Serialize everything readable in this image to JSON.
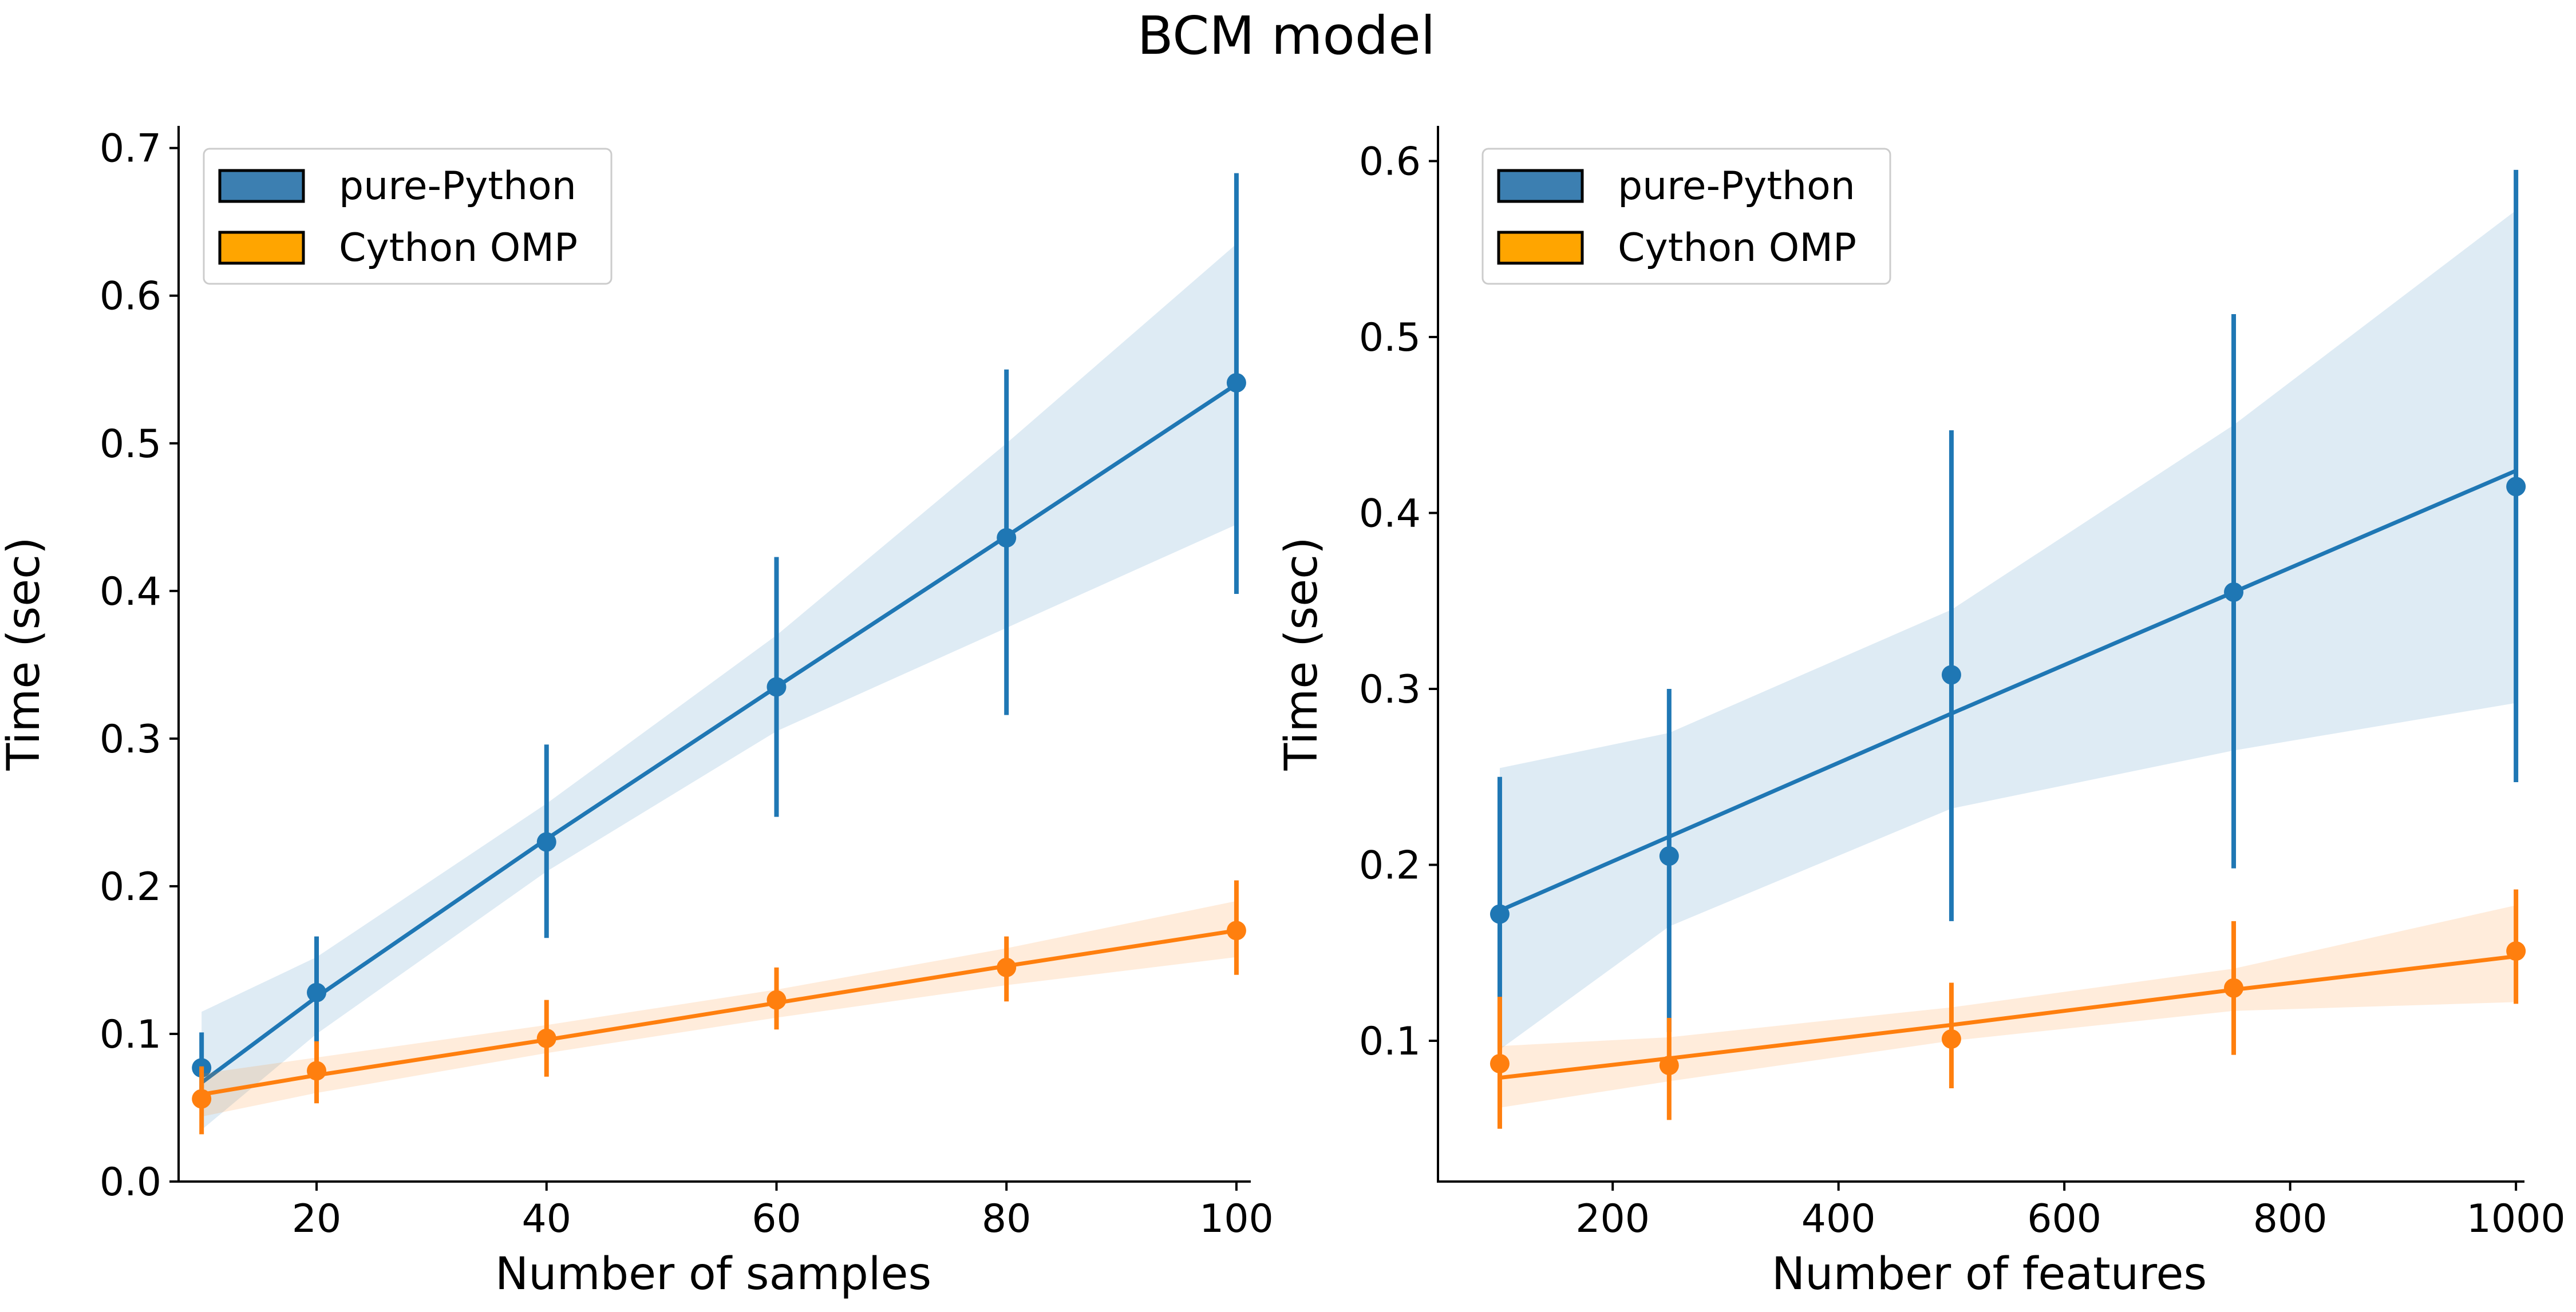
{
  "figure_title": "BCM model",
  "chart_data": [
    {
      "type": "line",
      "title": "",
      "xlabel": "Number of samples",
      "ylabel": "Time (sec)",
      "xlim": [
        8,
        101
      ],
      "ylim": [
        0,
        0.715
      ],
      "xticks": [
        20,
        40,
        60,
        80,
        100
      ],
      "yticks": [
        0.0,
        0.1,
        0.2,
        0.3,
        0.4,
        0.5,
        0.6,
        0.7
      ],
      "xtick_labels": [
        "20",
        "40",
        "60",
        "80",
        "100"
      ],
      "ytick_labels": [
        "0.0",
        "0.1",
        "0.2",
        "0.3",
        "0.4",
        "0.5",
        "0.6",
        "0.7"
      ],
      "legend_position": "top-left",
      "x": [
        10,
        20,
        40,
        60,
        80,
        100
      ],
      "series": [
        {
          "name": "pure-Python",
          "color": "#1f77b4",
          "legend_color": "#3c7fb1",
          "values": [
            0.077,
            0.128,
            0.23,
            0.335,
            0.436,
            0.541
          ],
          "err_low": [
            0.05,
            0.09,
            0.165,
            0.247,
            0.316,
            0.398
          ],
          "err_high": [
            0.101,
            0.166,
            0.296,
            0.423,
            0.55,
            0.683
          ],
          "fit": [
            0.067,
            0.125,
            0.232,
            0.335,
            0.437,
            0.54
          ],
          "ci_low": [
            0.035,
            0.1,
            0.21,
            0.305,
            0.375,
            0.445
          ],
          "ci_high": [
            0.115,
            0.152,
            0.256,
            0.37,
            0.5,
            0.635
          ]
        },
        {
          "name": "Cython OMP",
          "color": "#ff7f0e",
          "legend_color": "#ffa500",
          "values": [
            0.056,
            0.075,
            0.097,
            0.123,
            0.145,
            0.17
          ],
          "err_low": [
            0.032,
            0.053,
            0.071,
            0.103,
            0.122,
            0.14
          ],
          "err_high": [
            0.078,
            0.095,
            0.123,
            0.145,
            0.166,
            0.204
          ],
          "fit": [
            0.059,
            0.072,
            0.096,
            0.121,
            0.146,
            0.17
          ],
          "ci_low": [
            0.044,
            0.06,
            0.087,
            0.111,
            0.133,
            0.152
          ],
          "ci_high": [
            0.073,
            0.084,
            0.106,
            0.13,
            0.158,
            0.19
          ]
        }
      ]
    },
    {
      "type": "line",
      "title": "",
      "xlabel": "Number of features",
      "ylabel": "Time (sec)",
      "xlim": [
        62,
        1005
      ],
      "ylim": [
        0.02,
        0.62
      ],
      "xticks": [
        200,
        400,
        600,
        800,
        1000
      ],
      "yticks": [
        0.1,
        0.2,
        0.3,
        0.4,
        0.5,
        0.6
      ],
      "xtick_labels": [
        "200",
        "400",
        "600",
        "800",
        "1000"
      ],
      "ytick_labels": [
        "0.1",
        "0.2",
        "0.3",
        "0.4",
        "0.5",
        "0.6"
      ],
      "legend_position": "top-left",
      "x": [
        100,
        250,
        500,
        750,
        1000
      ],
      "series": [
        {
          "name": "pure-Python",
          "color": "#1f77b4",
          "legend_color": "#3c7fb1",
          "values": [
            0.172,
            0.205,
            0.308,
            0.355,
            0.415
          ],
          "err_low": [
            0.095,
            0.105,
            0.168,
            0.198,
            0.247
          ],
          "err_high": [
            0.25,
            0.3,
            0.447,
            0.513,
            0.595
          ],
          "fit": [
            0.174,
            0.216,
            0.286,
            0.355,
            0.424
          ],
          "ci_low": [
            0.095,
            0.165,
            0.232,
            0.265,
            0.292
          ],
          "ci_high": [
            0.255,
            0.275,
            0.345,
            0.45,
            0.572
          ]
        },
        {
          "name": "Cython OMP",
          "color": "#ff7f0e",
          "legend_color": "#ffa500",
          "values": [
            0.087,
            0.086,
            0.101,
            0.13,
            0.151
          ],
          "err_low": [
            0.05,
            0.055,
            0.073,
            0.092,
            0.121
          ],
          "err_high": [
            0.125,
            0.113,
            0.133,
            0.168,
            0.186
          ],
          "fit": [
            0.079,
            0.09,
            0.109,
            0.129,
            0.148
          ],
          "ci_low": [
            0.062,
            0.077,
            0.1,
            0.117,
            0.122
          ],
          "ci_high": [
            0.097,
            0.102,
            0.119,
            0.141,
            0.177
          ]
        }
      ]
    }
  ]
}
